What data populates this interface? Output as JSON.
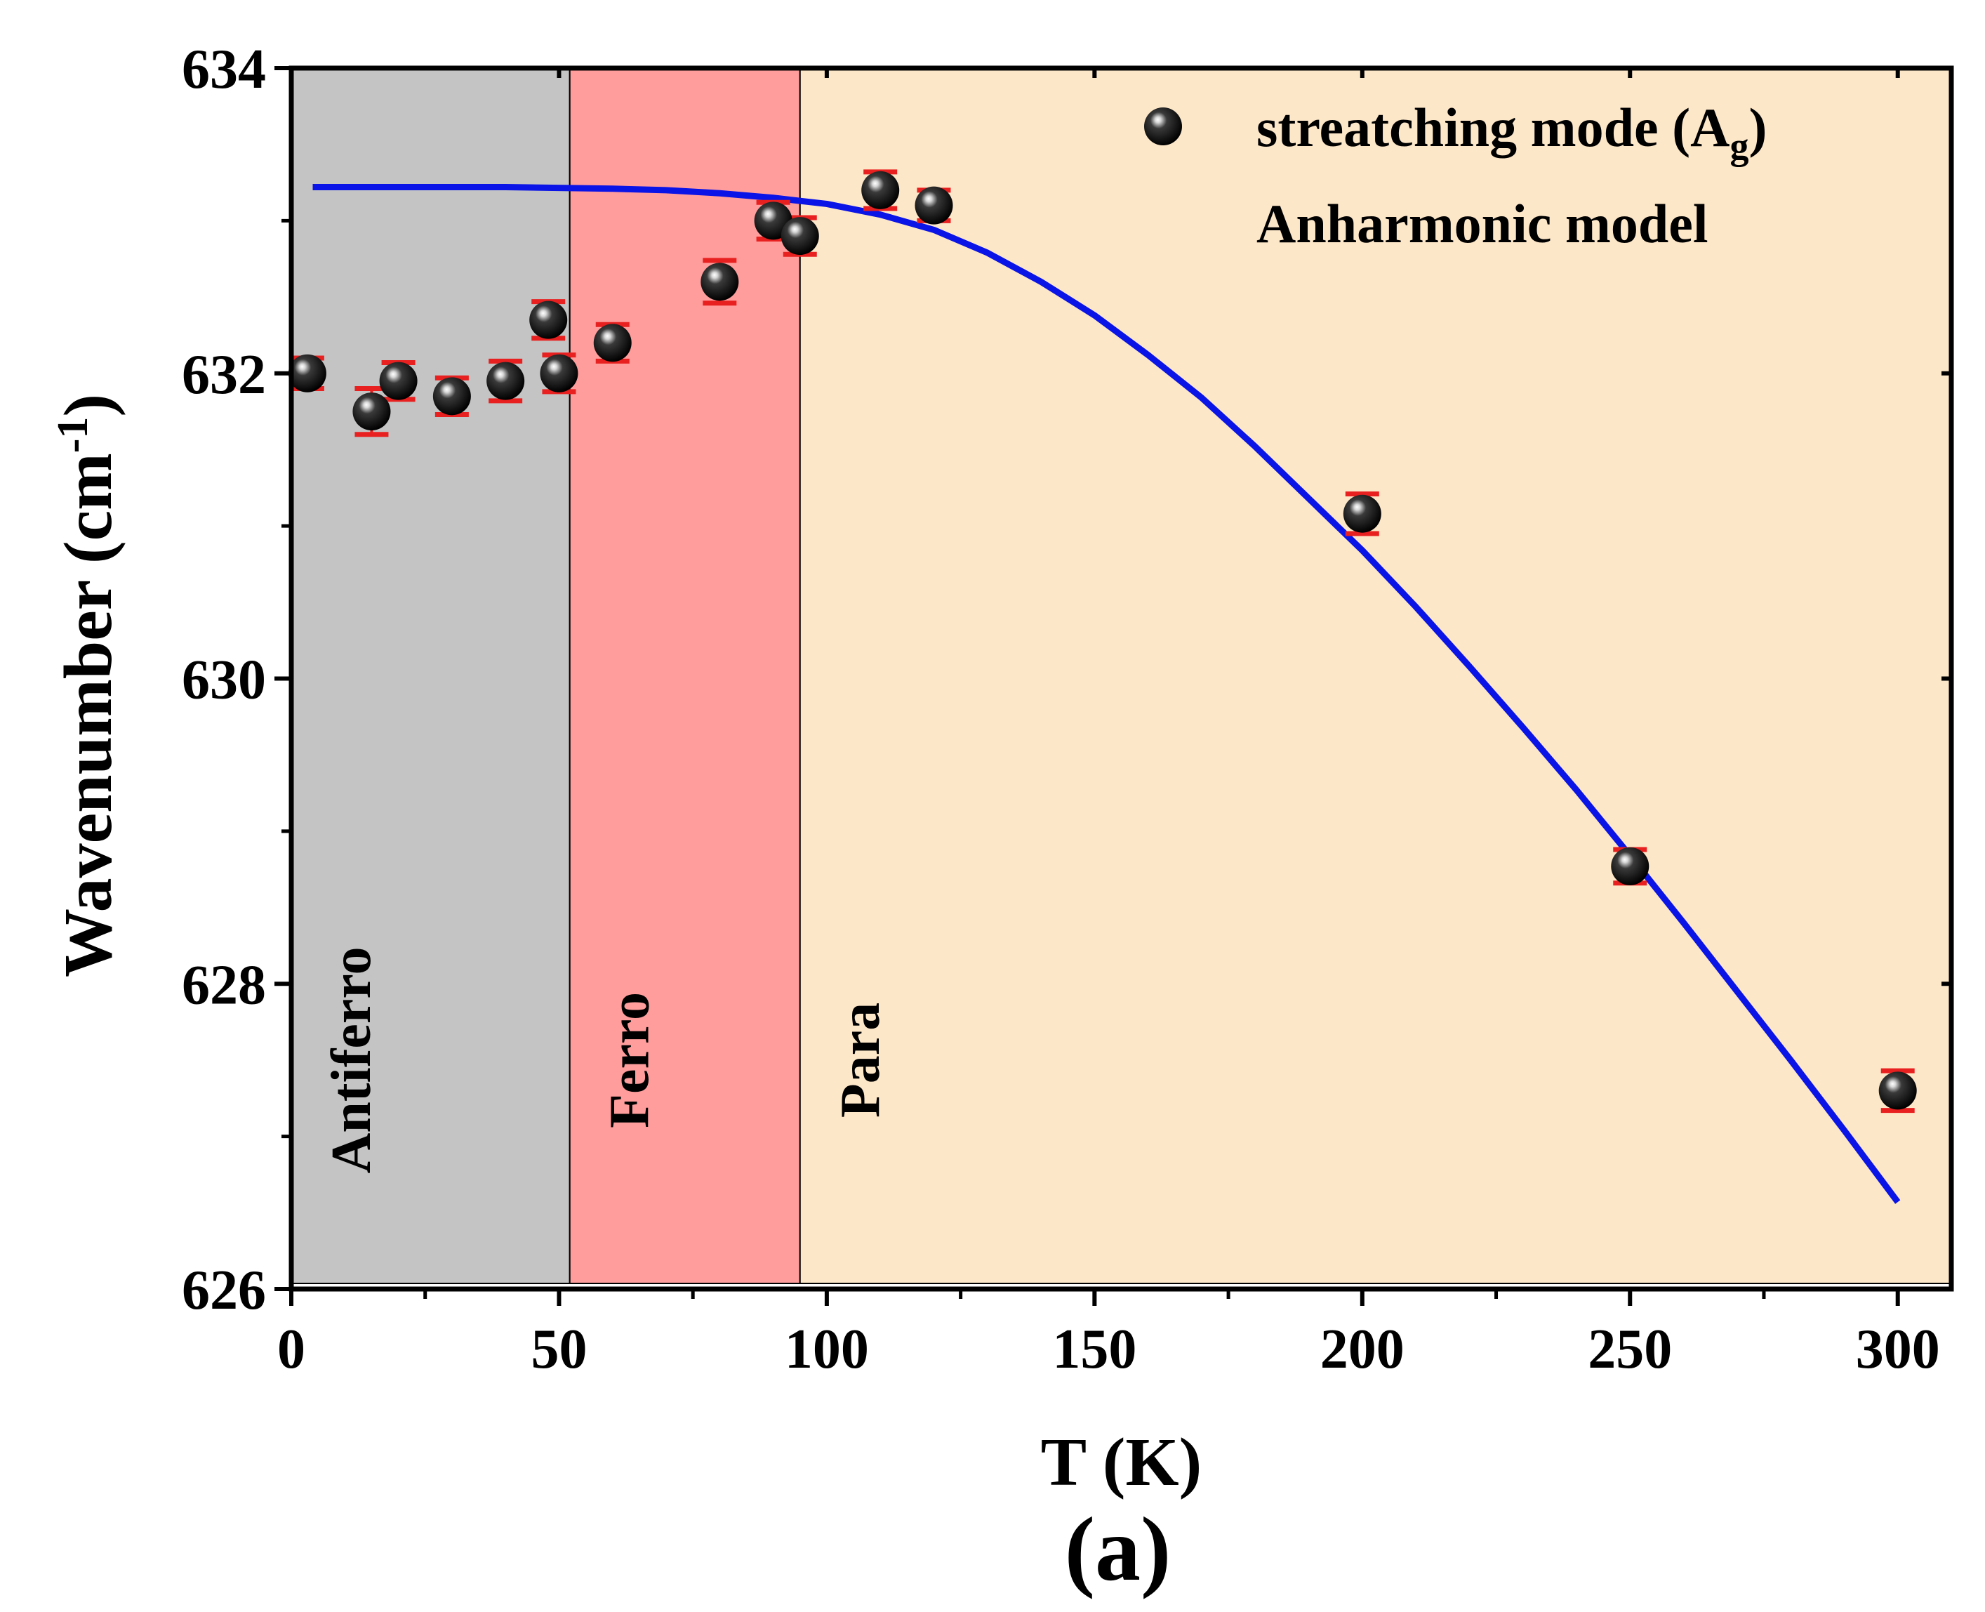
{
  "chart_data": {
    "type": "scatter",
    "title": "",
    "panel_label": "(a)",
    "xlabel": "T (K)",
    "ylabel": {
      "main": "Wavenumber (cm",
      "sup": "-1",
      "close": ")"
    },
    "xlim": [
      0,
      310
    ],
    "ylim": [
      626,
      634
    ],
    "x_ticks": [
      0,
      50,
      100,
      150,
      200,
      250,
      300
    ],
    "x_minor_ticks": [
      25,
      75,
      125,
      175,
      225,
      275
    ],
    "y_ticks": [
      626,
      628,
      630,
      632,
      634
    ],
    "y_minor_ticks": [
      627,
      629,
      631,
      633
    ],
    "regions": [
      {
        "label": "Antiferro",
        "x0": 0,
        "x1": 52,
        "color": "#c4c4c4",
        "label_y": 627.5
      },
      {
        "label": "Ferro",
        "x0": 52,
        "x1": 95,
        "color": "#ff9d9d",
        "label_y": 627.5
      },
      {
        "label": "Para",
        "x0": 95,
        "x1": 310,
        "color": "#fde7c9",
        "label_y": 627.5
      }
    ],
    "series": [
      {
        "name": "streatching mode",
        "name_sub": "g",
        "name_main_sub": "A",
        "kind": "points",
        "marker_color": "#000000",
        "errorbar_color": "#e8201f",
        "points": [
          {
            "x": 3,
            "y": 632.0,
            "err": 0.1
          },
          {
            "x": 15,
            "y": 631.75,
            "err": 0.15
          },
          {
            "x": 20,
            "y": 631.95,
            "err": 0.12
          },
          {
            "x": 30,
            "y": 631.85,
            "err": 0.12
          },
          {
            "x": 40,
            "y": 631.95,
            "err": 0.13
          },
          {
            "x": 48,
            "y": 632.35,
            "err": 0.12
          },
          {
            "x": 50,
            "y": 632.0,
            "err": 0.12
          },
          {
            "x": 60,
            "y": 632.2,
            "err": 0.12
          },
          {
            "x": 80,
            "y": 632.6,
            "err": 0.14
          },
          {
            "x": 90,
            "y": 633.0,
            "err": 0.12
          },
          {
            "x": 95,
            "y": 632.9,
            "err": 0.12
          },
          {
            "x": 110,
            "y": 633.2,
            "err": 0.12
          },
          {
            "x": 120,
            "y": 633.1,
            "err": 0.1
          },
          {
            "x": 200,
            "y": 631.08,
            "err": 0.13
          },
          {
            "x": 250,
            "y": 628.77,
            "err": 0.11
          },
          {
            "x": 300,
            "y": 627.3,
            "err": 0.13
          }
        ]
      },
      {
        "name": "Anharmonic model",
        "kind": "line",
        "color": "#0a14e6",
        "x": [
          4,
          20,
          40,
          60,
          70,
          80,
          90,
          100,
          110,
          120,
          130,
          140,
          150,
          160,
          170,
          180,
          190,
          200,
          210,
          220,
          230,
          240,
          250,
          260,
          270,
          280,
          290,
          300
        ],
        "y": [
          633.22,
          633.22,
          633.22,
          633.21,
          633.2,
          633.18,
          633.15,
          633.11,
          633.04,
          632.94,
          632.79,
          632.6,
          632.38,
          632.12,
          631.84,
          631.52,
          631.18,
          630.84,
          630.47,
          630.08,
          629.68,
          629.27,
          628.84,
          628.4,
          627.95,
          627.5,
          627.04,
          626.57
        ]
      }
    ],
    "legend_position": "top-right"
  }
}
